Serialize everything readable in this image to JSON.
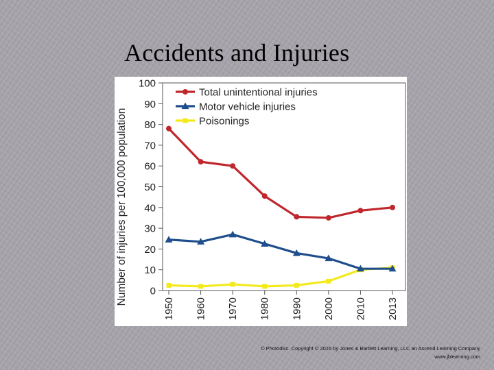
{
  "slide": {
    "title": "Accidents and Injuries",
    "copyright_line1": "© Photodisc. Copyright © 2016 by Jones & Bartlett Learning, LLC an Ascend Learning Company",
    "copyright_line2": "www.jblearning.com"
  },
  "chart_data": {
    "type": "line",
    "title": "",
    "xlabel": "",
    "ylabel": "Number of injuries per 100,000 population",
    "ylim": [
      0,
      100
    ],
    "yticks": [
      0,
      10,
      20,
      30,
      40,
      50,
      60,
      70,
      80,
      90,
      100
    ],
    "categories": [
      "1950",
      "1960",
      "1970",
      "1980",
      "1990",
      "2000",
      "2010",
      "2013"
    ],
    "legend_position": "top-left",
    "series": [
      {
        "name": "Total unintentional injuries",
        "color": "#c0272d",
        "marker": "circle",
        "values": [
          78,
          62,
          60,
          45.5,
          35.5,
          35,
          38.5,
          40
        ]
      },
      {
        "name": "Motor vehicle injuries",
        "color": "#1f4e8c",
        "marker": "triangle",
        "values": [
          24.5,
          23.5,
          27,
          22.5,
          18,
          15.5,
          10.5,
          10.5
        ]
      },
      {
        "name": "Poisonings",
        "color": "#f2ea1c",
        "marker": "square",
        "values": [
          2.5,
          2,
          3,
          2,
          2.5,
          4.5,
          10,
          11
        ]
      }
    ]
  }
}
